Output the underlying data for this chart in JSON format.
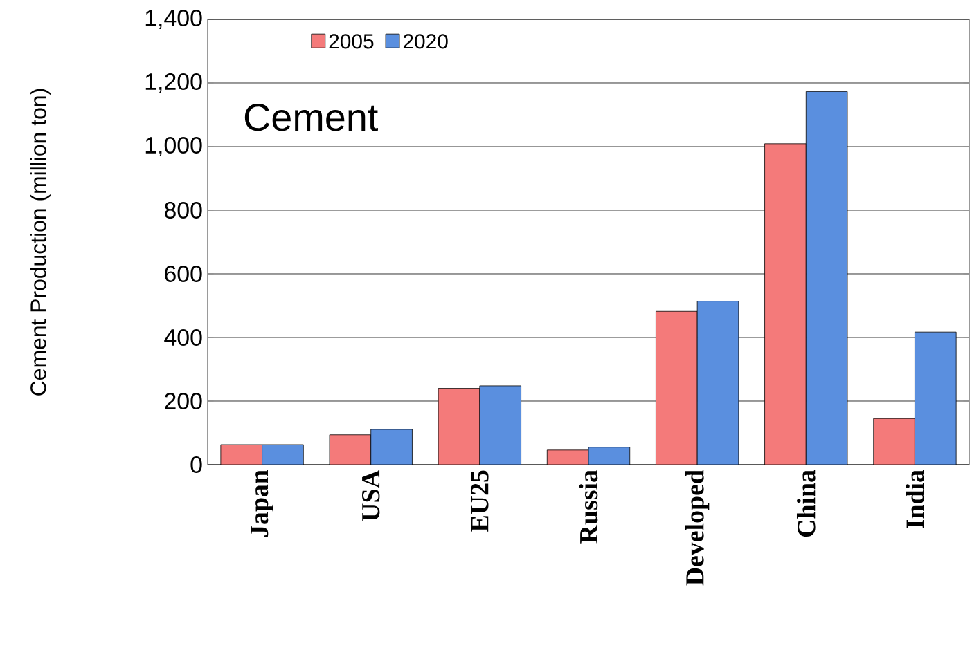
{
  "chart_data": {
    "type": "bar",
    "ylabel": "Cement Production (million ton)",
    "categories": [
      "Japan",
      "USA",
      "EU25",
      "Russia",
      "Developed",
      "China",
      "India"
    ],
    "series": [
      {
        "name": "2005",
        "color": "#f47a7a",
        "values": [
          63,
          94,
          240,
          46,
          482,
          1009,
          145
        ]
      },
      {
        "name": "2020",
        "color": "#5a8fdf",
        "values": [
          63,
          111,
          248,
          55,
          514,
          1173,
          417
        ]
      }
    ],
    "ylim": [
      0,
      1400
    ],
    "yticks": [
      0,
      200,
      400,
      600,
      800,
      {
        "value": 1000,
        "label": "1,000"
      },
      {
        "value": 1200,
        "label": "1,200"
      },
      {
        "value": 1400,
        "label": "1,400"
      }
    ],
    "grid": "y",
    "legend": "top left",
    "annotations": [
      "Cement"
    ]
  }
}
